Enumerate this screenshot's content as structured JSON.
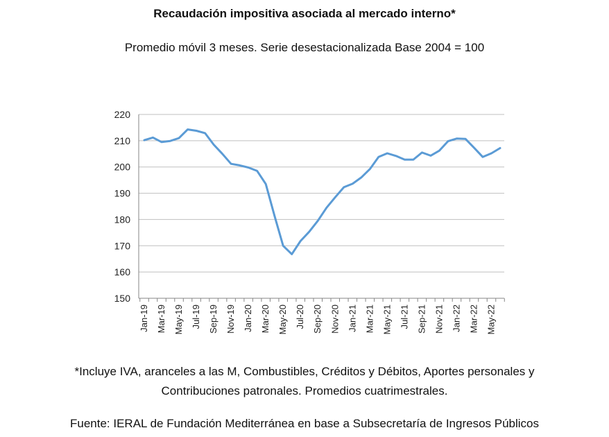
{
  "title": "Recaudación impositiva asociada al mercado interno*",
  "subtitle": "Promedio móvil 3 meses. Serie desestacionalizada Base 2004 = 100",
  "footnote_line1": "*Incluye IVA, aranceles a las M, Combustibles, Créditos y Débitos, Aportes personales y",
  "footnote_line2": "Contribuciones patronales. Promedios cuatrimestrales.",
  "source": "Fuente: IERAL de Fundación Mediterránea en base a Subsecretaría de Ingresos Públicos",
  "colors": {
    "line": "#5B9BD5",
    "grid": "#bfbfbf",
    "axis": "#868686"
  },
  "chart_data": {
    "type": "line",
    "ylim": [
      150,
      220
    ],
    "y_ticks": [
      150,
      160,
      170,
      180,
      190,
      200,
      210,
      220
    ],
    "grid": true,
    "x_tick_labels": [
      "Jan-19",
      "Mar-19",
      "May-19",
      "Jul-19",
      "Sep-19",
      "Nov-19",
      "Jan-20",
      "Mar-20",
      "May-20",
      "Jul-20",
      "Sep-20",
      "Nov-20",
      "Jan-21",
      "Mar-21",
      "May-21",
      "Jul-21",
      "Sep-21",
      "Nov-21",
      "Jan-22",
      "Mar-22",
      "May-22"
    ],
    "x": [
      "Jan-19",
      "Feb-19",
      "Mar-19",
      "Apr-19",
      "May-19",
      "Jun-19",
      "Jul-19",
      "Aug-19",
      "Sep-19",
      "Oct-19",
      "Nov-19",
      "Dec-19",
      "Jan-20",
      "Feb-20",
      "Mar-20",
      "Apr-20",
      "May-20",
      "Jun-20",
      "Jul-20",
      "Aug-20",
      "Sep-20",
      "Oct-20",
      "Nov-20",
      "Dec-20",
      "Jan-21",
      "Feb-21",
      "Mar-21",
      "Apr-21",
      "May-21",
      "Jun-21",
      "Jul-21",
      "Aug-21",
      "Sep-21",
      "Oct-21",
      "Nov-21",
      "Dec-21",
      "Jan-22",
      "Feb-22",
      "Mar-22",
      "Apr-22",
      "May-22",
      "Jun-22"
    ],
    "values": [
      210.2,
      211.2,
      209.5,
      209.9,
      211.0,
      214.3,
      213.8,
      212.9,
      208.5,
      205.0,
      201.2,
      200.6,
      199.8,
      198.5,
      193.5,
      181.5,
      170.0,
      166.8,
      171.8,
      175.3,
      179.5,
      184.5,
      188.5,
      192.3,
      193.6,
      196.0,
      199.2,
      203.8,
      205.2,
      204.2,
      202.8,
      202.8,
      205.5,
      204.3,
      206.2,
      209.8,
      210.8,
      210.7,
      207.3,
      203.8,
      205.2,
      207.2
    ]
  }
}
